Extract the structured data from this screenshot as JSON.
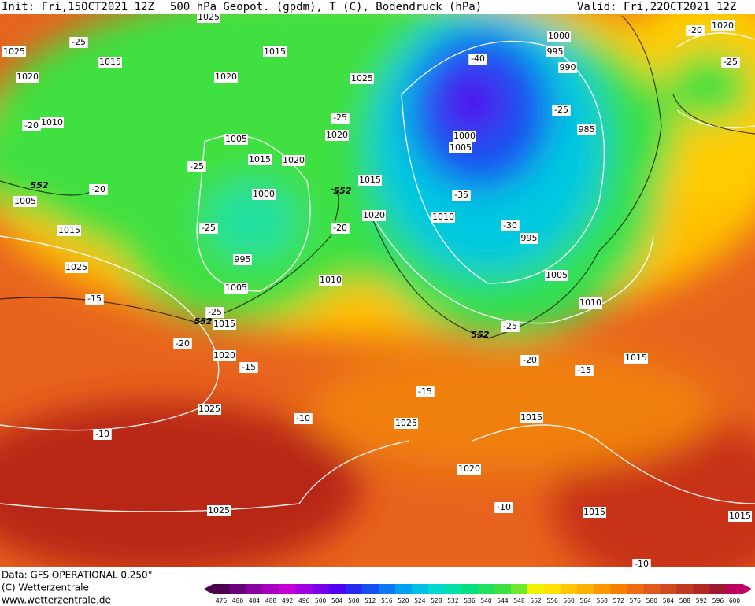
{
  "header": {
    "init": "Init: Fri,15OCT2021 12Z",
    "title": "500 hPa Geopot. (gpdm), T (C), Bodendruck (hPa)",
    "valid": "Valid: Fri,22OCT2021 12Z"
  },
  "footer": {
    "source": "Data: GFS OPERATIONAL 0.250°",
    "copyright": "(C) Wetterzentrale",
    "url": "www.wetterzentrale.de"
  },
  "colorbar": {
    "ticks": [
      476,
      480,
      484,
      488,
      492,
      496,
      500,
      504,
      508,
      512,
      516,
      520,
      524,
      528,
      532,
      536,
      540,
      544,
      548,
      552,
      556,
      560,
      564,
      568,
      572,
      576,
      580,
      584,
      588,
      592,
      596,
      600
    ],
    "colors": [
      "#4b0050",
      "#6a0080",
      "#8a00a0",
      "#a800c0",
      "#c400d8",
      "#a000e0",
      "#7a00e8",
      "#5000f0",
      "#2828f0",
      "#1450f0",
      "#0a78f0",
      "#00a0f0",
      "#00c0e8",
      "#00d8d0",
      "#00e0a8",
      "#00e080",
      "#20e060",
      "#40e040",
      "#70e830",
      "#f0f000",
      "#ffe000",
      "#ffc800",
      "#ffb000",
      "#ff9800",
      "#f88000",
      "#f06a10",
      "#e05a20",
      "#d04a20",
      "#c03820",
      "#b02820",
      "#a01830",
      "#c00060"
    ]
  },
  "map_labels": [
    "1025",
    "1025",
    "1015",
    "1020",
    "1010",
    "1005",
    "1015",
    "1025",
    "-15",
    "-20",
    "1020",
    "-15",
    "1025",
    "-10",
    "1025",
    "1015",
    "1020",
    "1005",
    "1015",
    "1020",
    "-25",
    "1000",
    "-25",
    "995",
    "1005",
    "1010",
    "-25",
    "1015",
    "-20",
    "1015",
    "1020",
    "1025",
    "-25",
    "1020",
    "1010",
    "1000",
    "1005",
    "-35",
    "-30",
    "995",
    "1005",
    "1010",
    "-25",
    "-20",
    "-15",
    "1015",
    "-15",
    "1015",
    "1025",
    "-10",
    "1020",
    "-10",
    "1015",
    "1015",
    "1000",
    "995",
    "990",
    "-40",
    "-25",
    "985",
    "-20",
    "1020",
    "-25",
    "-25",
    "-20",
    "-20",
    "552",
    "552",
    "552",
    "552",
    "-10"
  ]
}
